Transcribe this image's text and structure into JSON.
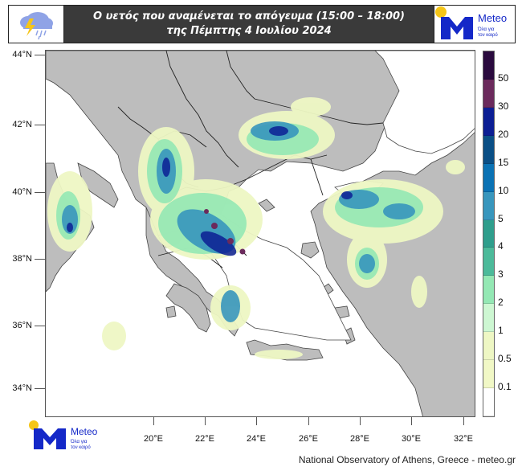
{
  "header": {
    "title_line1": "Ο υετός που αναμένεται το απόγευμα (15:00 – 18:00)",
    "title_line2": "της Πέμπτης 4 Ιουλίου 2024",
    "left_icon": "storm-cloud-icon",
    "logo": {
      "name": "Meteo",
      "tagline_line1": "Όλα για",
      "tagline_line2": "τον καιρό"
    }
  },
  "map": {
    "region": "Greece and surrounding area",
    "land_color": "#bdbdbd",
    "sea_color": "#ffffff",
    "lat_labels": [
      "44°N",
      "42°N",
      "40°N",
      "38°N",
      "36°N",
      "34°N"
    ],
    "lon_labels": [
      "20°E",
      "22°E",
      "24°E",
      "26°E",
      "28°E",
      "30°E",
      "32°E"
    ]
  },
  "legend": {
    "segments": [
      {
        "color": "#2a0a3e"
      },
      {
        "color": "#6b2a5c"
      },
      {
        "color": "#0c1e94"
      },
      {
        "color": "#0a4f86"
      },
      {
        "color": "#0a72b4"
      },
      {
        "color": "#3896bd"
      },
      {
        "color": "#2f9e8c"
      },
      {
        "color": "#4cba9a"
      },
      {
        "color": "#94e8b4"
      },
      {
        "color": "#cdf7d2"
      },
      {
        "color": "#eef7c4"
      },
      {
        "color": "#f1f8c6"
      },
      {
        "color": "#ffffff"
      }
    ],
    "labels": [
      "50",
      "30",
      "20",
      "15",
      "10",
      "5",
      "4",
      "3",
      "2",
      "1",
      "0.5",
      "0.1"
    ]
  },
  "footer": {
    "credit": "National Observatory of Athens, Greece - meteo.gr",
    "logo": {
      "name": "Meteo",
      "tagline_line1": "Όλα για",
      "tagline_line2": "τον καιρό"
    }
  }
}
